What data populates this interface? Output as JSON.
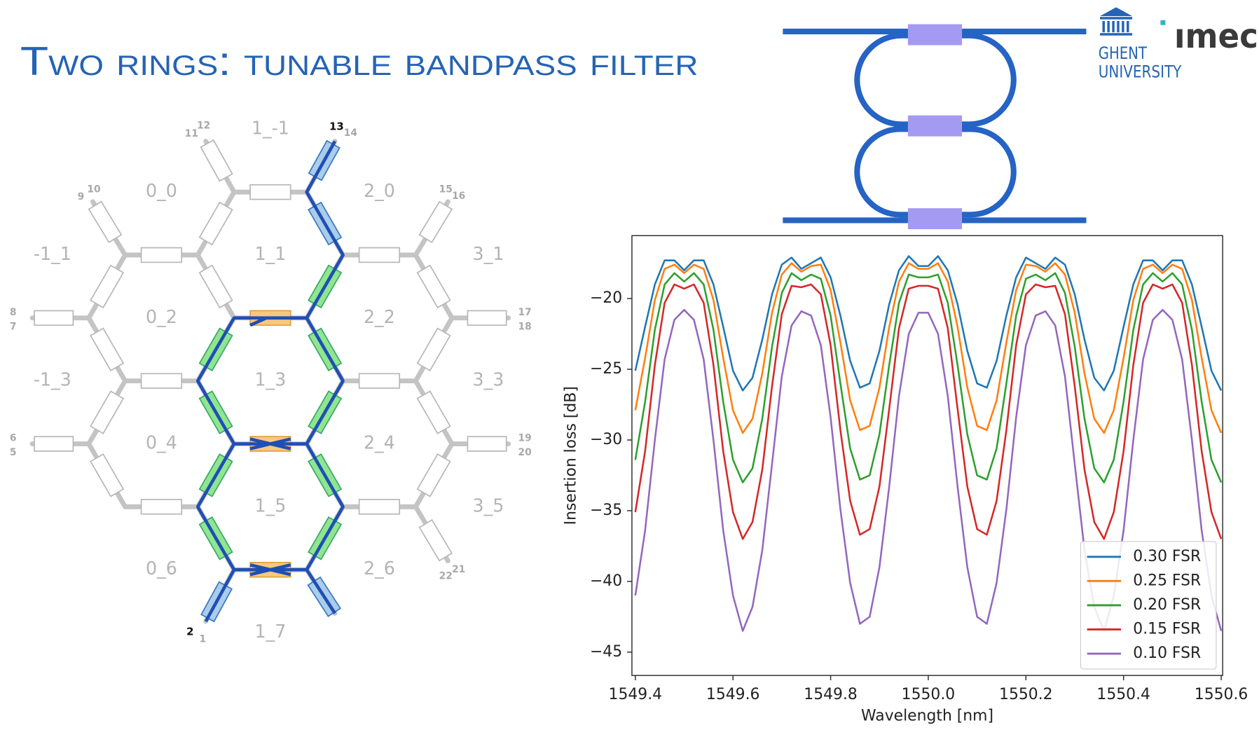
{
  "header": {
    "title": "Two rings: tunable bandpass filter"
  },
  "logos": {
    "university": [
      "GHENT",
      "UNIVERSITY"
    ],
    "institute": "ımec"
  },
  "mesh": {
    "cells": [
      "1_-1",
      "0_0",
      "2_0",
      "-1_1",
      "1_1",
      "3_1",
      "0_2",
      "2_2",
      "-1_3",
      "1_3",
      "3_3",
      "0_4",
      "2_4",
      "1_5",
      "3_5",
      "0_6",
      "2_6",
      "1_7"
    ],
    "ports": [
      "11",
      "12",
      "13",
      "14",
      "9",
      "10",
      "15",
      "16",
      "8",
      "7",
      "17",
      "18",
      "6",
      "5",
      "19",
      "20",
      "22",
      "21",
      "2",
      "1"
    ]
  },
  "chart_data": {
    "type": "line",
    "xlabel": "Wavelength [nm]",
    "ylabel": "Insertion loss [dB]",
    "x": [
      1549.4,
      1549.42,
      1549.44,
      1549.46,
      1549.48,
      1549.5,
      1549.52,
      1549.54,
      1549.56,
      1549.58,
      1549.6,
      1549.62,
      1549.64,
      1549.66,
      1549.68,
      1549.7,
      1549.72,
      1549.74,
      1549.76,
      1549.78,
      1549.8,
      1549.82,
      1549.84,
      1549.86,
      1549.88,
      1549.9,
      1549.92,
      1549.94,
      1549.96,
      1549.98,
      1550.0,
      1550.02,
      1550.04,
      1550.06,
      1550.08,
      1550.1,
      1550.12,
      1550.14,
      1550.16,
      1550.18,
      1550.2,
      1550.22,
      1550.24,
      1550.26,
      1550.28,
      1550.3,
      1550.32,
      1550.34,
      1550.36,
      1550.38,
      1550.4,
      1550.42,
      1550.44,
      1550.46,
      1550.48,
      1550.5,
      1550.52,
      1550.54,
      1550.56,
      1550.58,
      1550.6
    ],
    "series": [
      {
        "name": "0.30 FSR",
        "color": "#1f77b4",
        "values": [
          -25.1,
          -22.0,
          -19.0,
          -17.3,
          -17.3,
          -18.0,
          -17.3,
          -17.3,
          -19.0,
          -22.0,
          -25.1,
          -26.5,
          -25.6,
          -22.9,
          -19.7,
          -17.6,
          -17.1,
          -17.9,
          -17.5,
          -17.1,
          -18.5,
          -21.2,
          -24.4,
          -26.3,
          -26.0,
          -23.7,
          -20.4,
          -18.0,
          -17.0,
          -17.7,
          -17.7,
          -17.0,
          -18.0,
          -20.4,
          -23.7,
          -26.0,
          -26.3,
          -24.4,
          -21.2,
          -18.5,
          -17.1,
          -17.5,
          -17.9,
          -17.1,
          -17.6,
          -19.7,
          -22.9,
          -25.6,
          -26.5,
          -25.1,
          -22.0,
          -19.0,
          -17.3,
          -17.3,
          -18.0,
          -17.3,
          -17.3,
          -19.0,
          -22.0,
          -25.1,
          -26.5
        ]
      },
      {
        "name": "0.25 FSR",
        "color": "#ff7f0e",
        "values": [
          -27.9,
          -24.2,
          -20.1,
          -17.9,
          -17.6,
          -18.2,
          -17.6,
          -17.9,
          -20.1,
          -24.2,
          -27.9,
          -29.5,
          -28.5,
          -25.3,
          -21.0,
          -18.3,
          -17.5,
          -18.1,
          -17.7,
          -17.6,
          -19.4,
          -23.1,
          -27.2,
          -29.3,
          -29.0,
          -26.3,
          -22.0,
          -18.8,
          -17.5,
          -17.9,
          -17.9,
          -17.5,
          -18.8,
          -22.0,
          -26.3,
          -29.0,
          -29.3,
          -27.2,
          -23.1,
          -19.4,
          -17.6,
          -17.7,
          -18.1,
          -17.5,
          -18.3,
          -21.0,
          -25.3,
          -28.5,
          -29.5,
          -27.9,
          -24.2,
          -20.1,
          -17.9,
          -17.6,
          -18.2,
          -17.6,
          -17.9,
          -20.1,
          -24.2,
          -27.9,
          -29.5
        ]
      },
      {
        "name": "0.20 FSR",
        "color": "#2ca02c",
        "values": [
          -31.4,
          -27.3,
          -22.2,
          -19.0,
          -18.2,
          -18.8,
          -18.2,
          -19.0,
          -22.2,
          -27.3,
          -31.4,
          -33.0,
          -32.0,
          -28.5,
          -23.4,
          -19.6,
          -18.2,
          -18.7,
          -18.3,
          -18.6,
          -21.2,
          -26.0,
          -30.6,
          -32.8,
          -32.5,
          -29.6,
          -24.7,
          -20.3,
          -18.3,
          -18.5,
          -18.5,
          -18.3,
          -20.3,
          -24.7,
          -29.6,
          -32.5,
          -32.8,
          -30.6,
          -26.0,
          -21.2,
          -18.6,
          -18.3,
          -18.7,
          -18.2,
          -19.6,
          -23.4,
          -28.5,
          -32.0,
          -33.0,
          -31.4,
          -27.3,
          -22.2,
          -19.0,
          -18.2,
          -18.8,
          -18.2,
          -19.0,
          -22.2,
          -27.3,
          -31.4,
          -33.0
        ]
      },
      {
        "name": "0.15 FSR",
        "color": "#d62728",
        "values": [
          -35.1,
          -30.8,
          -24.7,
          -20.3,
          -19.0,
          -19.3,
          -19.0,
          -20.3,
          -24.7,
          -30.8,
          -35.1,
          -37.0,
          -35.8,
          -32.1,
          -26.2,
          -21.1,
          -19.1,
          -19.2,
          -19.0,
          -19.7,
          -23.3,
          -29.3,
          -34.3,
          -36.7,
          -36.3,
          -33.3,
          -27.8,
          -22.1,
          -19.3,
          -19.1,
          -19.1,
          -19.3,
          -22.1,
          -27.8,
          -33.3,
          -36.3,
          -36.7,
          -34.3,
          -29.3,
          -23.3,
          -19.7,
          -19.0,
          -19.2,
          -19.1,
          -21.1,
          -26.2,
          -32.1,
          -35.8,
          -37.0,
          -35.1,
          -30.8,
          -24.7,
          -20.3,
          -19.0,
          -19.3,
          -19.0,
          -20.3,
          -24.7,
          -30.8,
          -35.1,
          -37.0
        ]
      },
      {
        "name": "0.10 FSR",
        "color": "#9467bd",
        "values": [
          -41.0,
          -36.4,
          -30.0,
          -24.3,
          -21.5,
          -20.8,
          -21.5,
          -24.3,
          -30.0,
          -36.4,
          -41.0,
          -43.5,
          -41.8,
          -37.8,
          -31.7,
          -25.5,
          -21.9,
          -20.9,
          -21.2,
          -23.3,
          -28.4,
          -34.9,
          -40.1,
          -43.0,
          -42.5,
          -39.0,
          -33.3,
          -26.9,
          -22.5,
          -21.0,
          -21.0,
          -22.5,
          -26.9,
          -33.3,
          -39.0,
          -42.5,
          -43.0,
          -40.1,
          -34.9,
          -28.4,
          -23.3,
          -21.2,
          -20.9,
          -21.9,
          -25.5,
          -31.7,
          -37.8,
          -41.8,
          -43.5,
          -41.0,
          -36.4,
          -30.0,
          -24.3,
          -21.5,
          -20.8,
          -21.5,
          -24.3,
          -30.0,
          -36.4,
          -41.0,
          -43.5
        ]
      }
    ],
    "xlim": [
      1549.393,
      1550.603
    ],
    "ylim": [
      -46.65,
      -15.55
    ],
    "xticks": [
      1549.4,
      1549.6,
      1549.8,
      {
        "value": 1550,
        "label": "1550.0"
      },
      1550.2,
      1550.4,
      1550.6
    ],
    "yticks": [
      {
        "value": -20,
        "label": "−20"
      },
      {
        "value": -25,
        "label": "−25"
      },
      {
        "value": -30,
        "label": "−30"
      },
      {
        "value": -35,
        "label": "−35"
      },
      {
        "value": -40,
        "label": "−40"
      },
      {
        "value": -45,
        "label": "−45"
      }
    ],
    "grid": false,
    "legend": "lower right"
  }
}
